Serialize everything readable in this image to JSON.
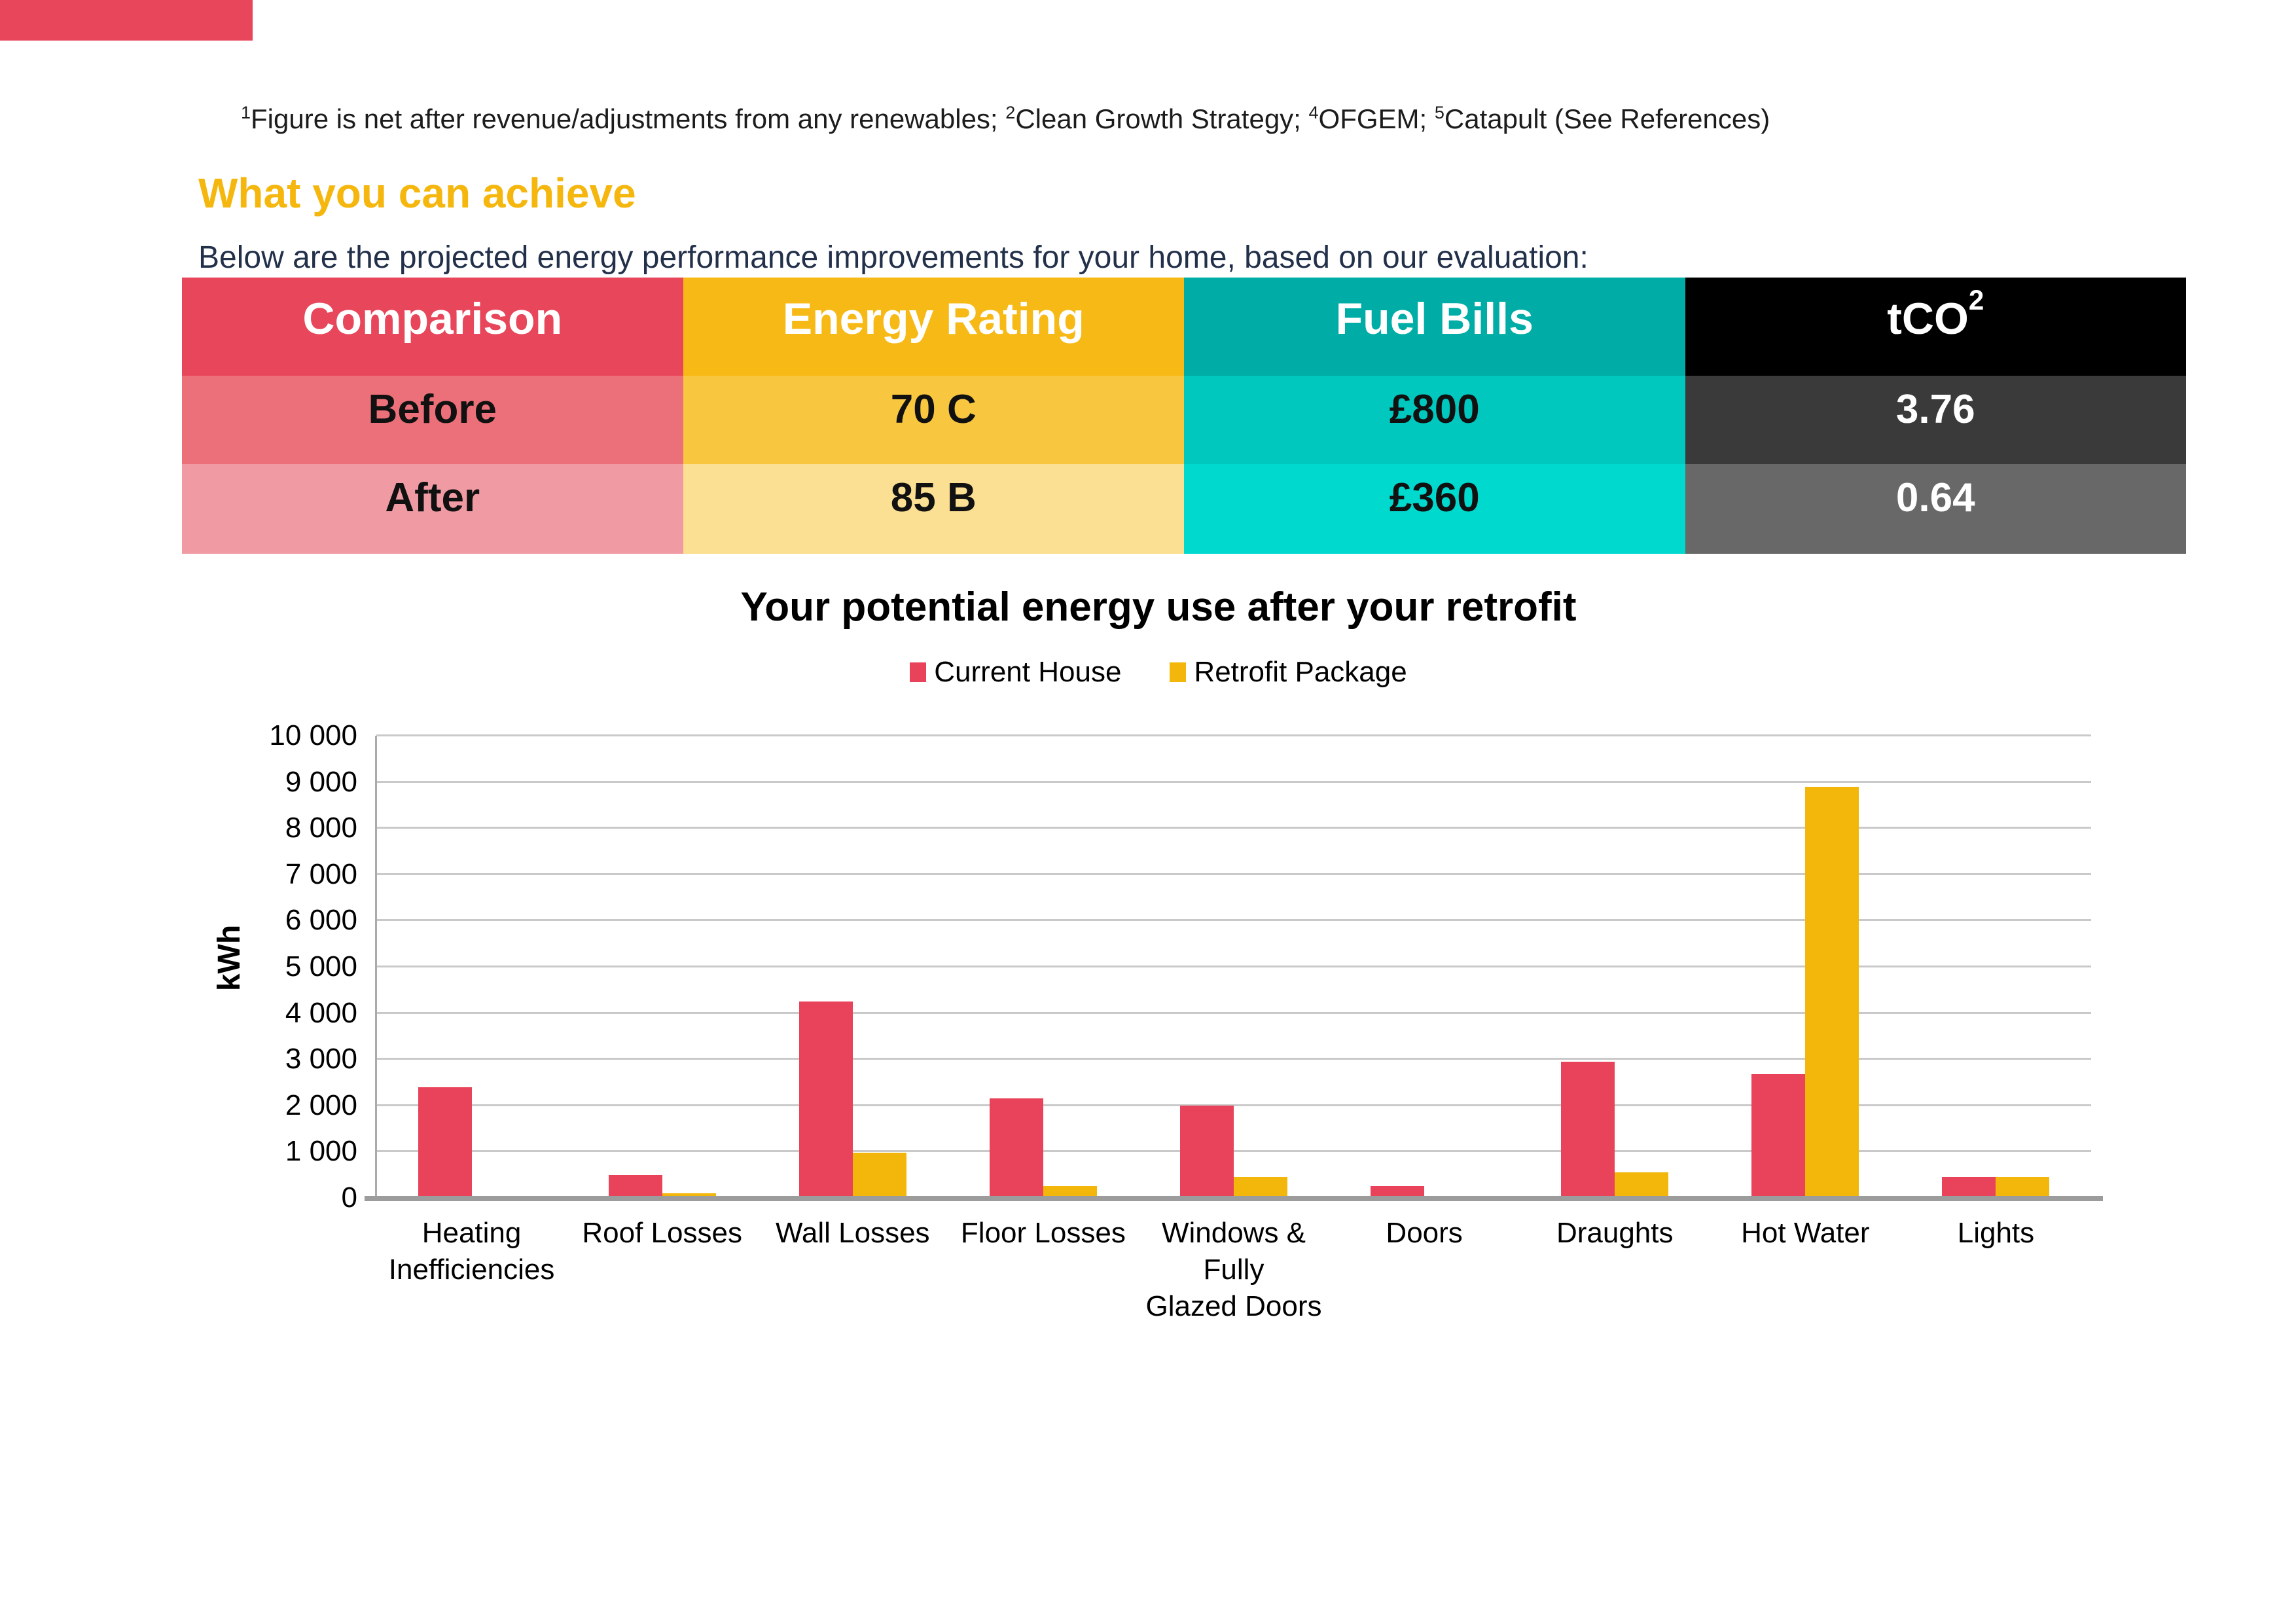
{
  "page": {
    "footnote": {
      "sup1": "1",
      "part1": "Figure is net after revenue/adjustments from any renewables; ",
      "sup2": "2",
      "part2": "Clean Growth Strategy; ",
      "sup4": "4",
      "part3": "OFGEM; ",
      "sup5": "5",
      "part4": "Catapult (See References)"
    },
    "heading": "What you can achieve",
    "intro": "Below are the projected energy performance improvements for your home, based on our evaluation:"
  },
  "table": {
    "headers": {
      "comparison": "Comparison",
      "energy": "Energy Rating",
      "bills": "Fuel Bills",
      "tco2_base": "tCO",
      "tco2_sub": "2"
    },
    "rows": [
      {
        "label": "Before",
        "energy": "70 C",
        "bills": "£800",
        "tco2": "3.76"
      },
      {
        "label": "After",
        "energy": "85 B",
        "bills": "£360",
        "tco2": "0.64"
      }
    ]
  },
  "chart_data": {
    "type": "bar",
    "title": "Your potential energy use after your retrofit",
    "xlabel": "",
    "ylabel": "kWh",
    "ylim": [
      0,
      10000
    ],
    "ytick_step": 1000,
    "ytick_labels": [
      "0",
      "1 000",
      "2 000",
      "3 000",
      "4 000",
      "5 000",
      "6 000",
      "7 000",
      "8 000",
      "9 000",
      "10 000"
    ],
    "grid": true,
    "legend_position": "top-center",
    "categories": [
      "Heating Inefficiencies",
      "Roof Losses",
      "Wall Losses",
      "Floor Losses",
      "Windows & Fully Glazed Doors",
      "Doors",
      "Draughts",
      "Hot Water",
      "Lights"
    ],
    "category_label_lines": [
      [
        "Heating",
        "Inefficiencies"
      ],
      [
        "Roof Losses"
      ],
      [
        "Wall Losses"
      ],
      [
        "Floor Losses"
      ],
      [
        "Windows &",
        "Fully",
        "Glazed Doors"
      ],
      [
        "Doors"
      ],
      [
        "Draughts"
      ],
      [
        "Hot Water"
      ],
      [
        "Lights"
      ]
    ],
    "series": [
      {
        "name": "Current House",
        "color": "#e8435a",
        "values": [
          2400,
          500,
          4250,
          2150,
          2000,
          250,
          2950,
          2680,
          450
        ]
      },
      {
        "name": "Retrofit Package",
        "color": "#f2b70a",
        "values": [
          0,
          100,
          975,
          250,
          460,
          40,
          550,
          8900,
          450
        ]
      }
    ]
  },
  "colors": {
    "corner_bar": "#e8465a",
    "heading": "#f5b70e",
    "intro_text": "#22304a",
    "table_header_red": "#e8465a",
    "table_header_yellow": "#f7b916",
    "table_header_teal": "#00ada6",
    "table_header_black": "#000000",
    "table_before_red": "#ec7079",
    "table_before_yellow": "#f8c63f",
    "table_before_teal": "#00c8be",
    "table_before_gray": "#3a3a3a",
    "table_after_red": "#f09ba3",
    "table_after_yellow": "#fbdf92",
    "table_after_teal": "#00d9ce",
    "table_after_gray": "#686868",
    "gridline": "#c9c9c9",
    "axis_line": "#9c9c9c"
  }
}
